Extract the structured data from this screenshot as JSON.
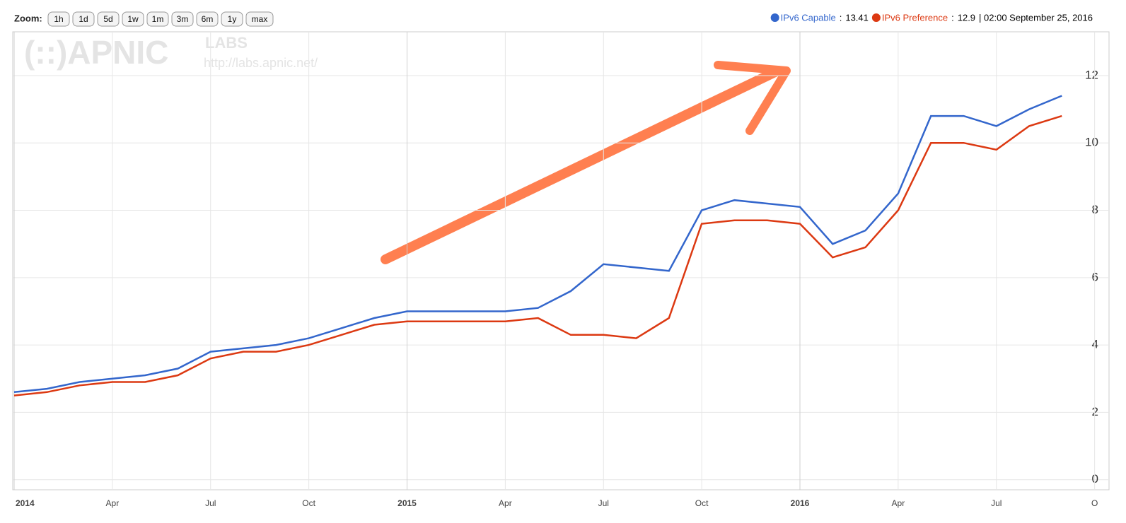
{
  "zoom": {
    "label": "Zoom:",
    "buttons": [
      "1h",
      "1d",
      "5d",
      "1w",
      "1m",
      "3m",
      "6m",
      "1y",
      "max"
    ]
  },
  "watermark": {
    "logo": "(::)APNIC",
    "labs": "LABS",
    "url": "http://labs.apnic.net/"
  },
  "readout": {
    "values": [
      13.41,
      12.9
    ],
    "time": "| 02:00 September 25, 2016"
  },
  "chart_data": {
    "type": "line",
    "x": [
      "2014-01",
      "2014-02",
      "2014-03",
      "2014-04",
      "2014-05",
      "2014-06",
      "2014-07",
      "2014-08",
      "2014-09",
      "2014-10",
      "2014-11",
      "2014-12",
      "2015-01",
      "2015-02",
      "2015-03",
      "2015-04",
      "2015-05",
      "2015-06",
      "2015-07",
      "2015-08",
      "2015-09",
      "2015-10",
      "2015-11",
      "2015-12",
      "2016-01",
      "2016-02",
      "2016-03",
      "2016-04",
      "2016-05",
      "2016-06",
      "2016-07",
      "2016-08",
      "2016-09"
    ],
    "series": [
      {
        "name": "IPv6 Capable",
        "color": "#3366cc",
        "values": [
          2.6,
          2.7,
          2.9,
          3.0,
          3.1,
          3.3,
          3.8,
          3.9,
          4.0,
          4.2,
          4.5,
          4.8,
          5.0,
          5.0,
          5.0,
          5.0,
          5.1,
          5.6,
          6.4,
          6.3,
          6.2,
          8.0,
          8.3,
          8.2,
          8.1,
          7.0,
          7.4,
          8.5,
          10.8,
          10.8,
          10.5,
          11.0,
          11.4
        ]
      },
      {
        "name": "IPv6 Preference",
        "color": "#dc3912",
        "values": [
          2.5,
          2.6,
          2.8,
          2.9,
          2.9,
          3.1,
          3.6,
          3.8,
          3.8,
          4.0,
          4.3,
          4.6,
          4.7,
          4.7,
          4.7,
          4.7,
          4.8,
          4.3,
          4.3,
          4.2,
          4.8,
          7.6,
          7.7,
          7.7,
          7.6,
          6.6,
          6.9,
          8.0,
          10.0,
          10.0,
          9.8,
          10.5,
          10.8
        ]
      }
    ],
    "xticks": [
      {
        "value": "2014-01",
        "label": "2014"
      },
      {
        "value": "2014-04",
        "label": "Apr"
      },
      {
        "value": "2014-07",
        "label": "Jul"
      },
      {
        "value": "2014-10",
        "label": "Oct"
      },
      {
        "value": "2015-01",
        "label": "2015"
      },
      {
        "value": "2015-04",
        "label": "Apr"
      },
      {
        "value": "2015-07",
        "label": "Jul"
      },
      {
        "value": "2015-10",
        "label": "Oct"
      },
      {
        "value": "2016-01",
        "label": "2016"
      },
      {
        "value": "2016-04",
        "label": "Apr"
      },
      {
        "value": "2016-07",
        "label": "Jul"
      },
      {
        "value": "2016-10",
        "label": "O"
      }
    ],
    "ylim": [
      -0.3,
      13.3
    ],
    "yticks": [
      0,
      2,
      4,
      6,
      8,
      10,
      12
    ],
    "grid": true
  }
}
